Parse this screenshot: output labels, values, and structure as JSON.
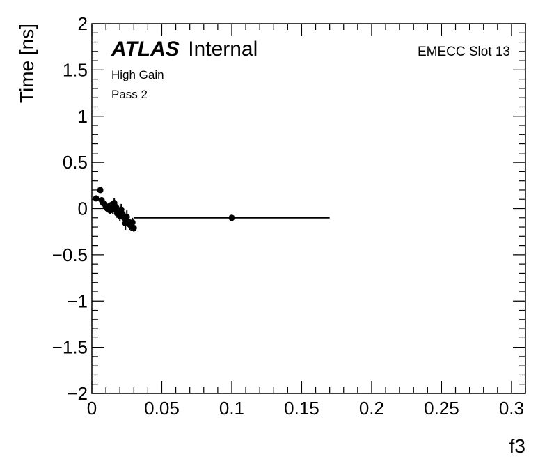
{
  "chart_data": {
    "type": "scatter",
    "title": "",
    "xlabel": "f3",
    "ylabel": "Time [ns]",
    "xlim": [
      0,
      0.31
    ],
    "ylim": [
      -2,
      2
    ],
    "x_ticks": [
      0,
      0.05,
      0.1,
      0.15,
      0.2,
      0.25,
      0.3
    ],
    "x_tick_labels": [
      "0",
      "0.05",
      "0.1",
      "0.15",
      "0.2",
      "0.25",
      "0.3"
    ],
    "y_ticks": [
      -2,
      -1.5,
      -1,
      -0.5,
      0,
      0.5,
      1,
      1.5,
      2
    ],
    "y_tick_labels": [
      "−2",
      "−1.5",
      "−1",
      "−0.5",
      "0",
      "0.5",
      "1",
      "1.5",
      "2"
    ],
    "annotations": {
      "atlas": "ATLAS",
      "atlas_suffix": "Internal",
      "gain": "High Gain",
      "pass": "Pass 2",
      "slot": "EMECC Slot 13"
    },
    "points": [
      {
        "x": 0.003,
        "y": 0.11,
        "xerr": 0.0005,
        "yerr": 0.02
      },
      {
        "x": 0.006,
        "y": 0.2,
        "xerr": 0.0005,
        "yerr": 0.02
      },
      {
        "x": 0.007,
        "y": 0.09,
        "xerr": 0.0005,
        "yerr": 0.03
      },
      {
        "x": 0.008,
        "y": 0.06,
        "xerr": 0.0005,
        "yerr": 0.03
      },
      {
        "x": 0.009,
        "y": 0.05,
        "xerr": 0.0005,
        "yerr": 0.03
      },
      {
        "x": 0.01,
        "y": 0.02,
        "xerr": 0.0005,
        "yerr": 0.03
      },
      {
        "x": 0.011,
        "y": 0.0,
        "xerr": 0.0005,
        "yerr": 0.03
      },
      {
        "x": 0.012,
        "y": 0.02,
        "xerr": 0.0005,
        "yerr": 0.04
      },
      {
        "x": 0.013,
        "y": -0.02,
        "xerr": 0.0005,
        "yerr": 0.04
      },
      {
        "x": 0.014,
        "y": 0.04,
        "xerr": 0.0005,
        "yerr": 0.04
      },
      {
        "x": 0.015,
        "y": -0.01,
        "xerr": 0.0005,
        "yerr": 0.05
      },
      {
        "x": 0.016,
        "y": 0.06,
        "xerr": 0.0005,
        "yerr": 0.05
      },
      {
        "x": 0.017,
        "y": 0.02,
        "xerr": 0.0005,
        "yerr": 0.05
      },
      {
        "x": 0.018,
        "y": -0.05,
        "xerr": 0.0005,
        "yerr": 0.05
      },
      {
        "x": 0.019,
        "y": -0.03,
        "xerr": 0.0005,
        "yerr": 0.06
      },
      {
        "x": 0.02,
        "y": -0.08,
        "xerr": 0.0005,
        "yerr": 0.06
      },
      {
        "x": 0.021,
        "y": -0.01,
        "xerr": 0.0005,
        "yerr": 0.06
      },
      {
        "x": 0.022,
        "y": -0.06,
        "xerr": 0.0005,
        "yerr": 0.06
      },
      {
        "x": 0.023,
        "y": -0.1,
        "xerr": 0.0005,
        "yerr": 0.07
      },
      {
        "x": 0.024,
        "y": -0.16,
        "xerr": 0.0005,
        "yerr": 0.07
      },
      {
        "x": 0.025,
        "y": -0.09,
        "xerr": 0.0005,
        "yerr": 0.07
      },
      {
        "x": 0.026,
        "y": -0.14,
        "xerr": 0.0005,
        "yerr": 0.06
      },
      {
        "x": 0.027,
        "y": -0.17,
        "xerr": 0.0005,
        "yerr": 0.06
      },
      {
        "x": 0.028,
        "y": -0.19,
        "xerr": 0.0005,
        "yerr": 0.05
      },
      {
        "x": 0.029,
        "y": -0.15,
        "xerr": 0.0005,
        "yerr": 0.05
      },
      {
        "x": 0.03,
        "y": -0.21,
        "xerr": 0.0005,
        "yerr": 0.04
      },
      {
        "x": 0.1,
        "y": -0.1,
        "xerr": 0.07,
        "yerr": 0.02
      }
    ]
  }
}
